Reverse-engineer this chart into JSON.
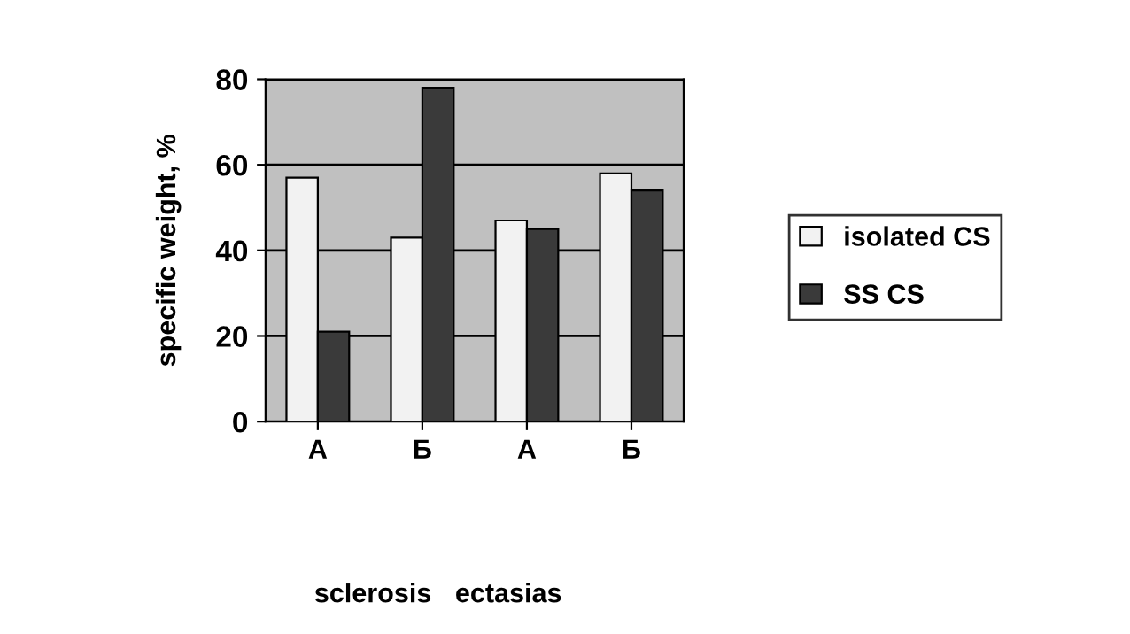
{
  "chart_data": {
    "type": "bar",
    "ylabel": "specific weight, %",
    "categories": [
      "А",
      "Б",
      "А",
      "Б"
    ],
    "series": [
      {
        "name": "isolated CS",
        "color": "#f2f2f2",
        "values": [
          57,
          43,
          47,
          58
        ]
      },
      {
        "name": "SS CS",
        "color": "#3a3a3a",
        "values": [
          21,
          78,
          45,
          54
        ]
      }
    ],
    "ylim": [
      0,
      80
    ],
    "yticks": [
      0,
      20,
      40,
      60,
      80
    ],
    "grid": "y",
    "legend": "right",
    "annotations": [
      "sclerosis",
      "ectasias"
    ]
  }
}
